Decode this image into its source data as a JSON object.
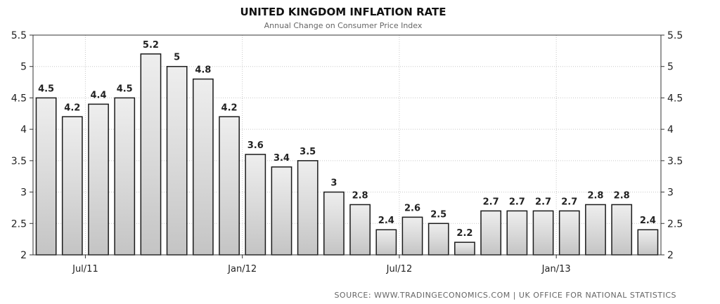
{
  "chart_data": {
    "type": "bar",
    "title": "UNITED KINGDOM INFLATION RATE",
    "subtitle": "Annual Change on Consumer Price Index",
    "source": "SOURCE: WWW.TRADINGECONOMICS.COM  |  UK OFFICE FOR NATIONAL STATISTICS",
    "xlabel": "",
    "ylabel": "",
    "ylim": [
      2,
      5.5
    ],
    "yticks": [
      "2",
      "2.5",
      "3",
      "3.5",
      "4",
      "4.5",
      "5",
      "5.5"
    ],
    "grid": true,
    "legend": "none",
    "x_tick_labels": [
      {
        "label": "Jul/11",
        "index": 1.5
      },
      {
        "label": "Jan/12",
        "index": 7.5
      },
      {
        "label": "Jul/12",
        "index": 13.5
      },
      {
        "label": "Jan/13",
        "index": 19.5
      }
    ],
    "values": [
      4.5,
      4.2,
      4.4,
      4.5,
      5.2,
      5,
      4.8,
      4.2,
      3.6,
      3.4,
      3.5,
      3,
      2.8,
      2.4,
      2.6,
      2.5,
      2.2,
      2.7,
      2.7,
      2.7,
      2.7,
      2.8,
      2.8,
      2.4
    ],
    "value_labels": [
      "4.5",
      "4.2",
      "4.4",
      "4.5",
      "5.2",
      "5",
      "4.8",
      "4.2",
      "3.6",
      "3.4",
      "3.5",
      "3",
      "2.8",
      "2.4",
      "2.6",
      "2.5",
      "2.2",
      "2.7",
      "2.7",
      "2.7",
      "2.7",
      "2.8",
      "2.8",
      "2.4"
    ]
  }
}
